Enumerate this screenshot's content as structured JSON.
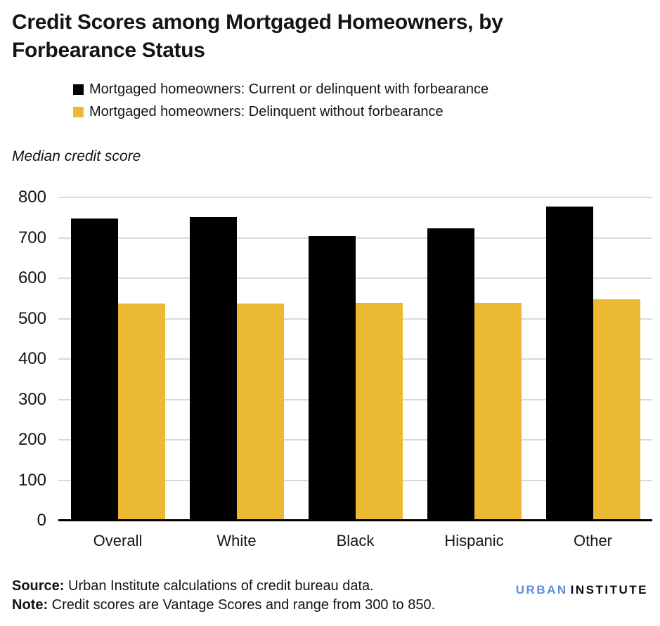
{
  "title": "Credit Scores among Mortgaged Homeowners, by Forbearance Status",
  "legend": [
    {
      "label": "Mortgaged homeowners: Current or delinquent with forbearance",
      "color": "#000000"
    },
    {
      "label": "Mortgaged homeowners: Delinquent without forbearance",
      "color": "#ecba32"
    }
  ],
  "axis_title": "Median credit score",
  "chart_data": {
    "type": "bar",
    "categories": [
      "Overall",
      "White",
      "Black",
      "Hispanic",
      "Other"
    ],
    "series": [
      {
        "name": "Mortgaged homeowners: Current or delinquent with forbearance",
        "color": "#000000",
        "values": [
          748,
          752,
          705,
          723,
          777
        ]
      },
      {
        "name": "Mortgaged homeowners: Delinquent without forbearance",
        "color": "#ecba32",
        "values": [
          537,
          537,
          540,
          540,
          548
        ]
      }
    ],
    "title": "Credit Scores among Mortgaged Homeowners, by Forbearance Status",
    "xlabel": "",
    "ylabel": "Median credit score",
    "ylim": [
      0,
      800
    ],
    "ytick_interval": 100,
    "yticks": [
      0,
      100,
      200,
      300,
      400,
      500,
      600,
      700,
      800
    ],
    "grid": true,
    "gridline_color": "#d9d9d9",
    "legend_position": "top"
  },
  "footer": {
    "source_label": "Source:",
    "source_text": " Urban Institute calculations of credit bureau data.",
    "note_label": "Note:",
    "note_text": " Credit scores are Vantage Scores and range from 300 to 850."
  },
  "logo": {
    "part1": "URBAN",
    "part2": "INSTITUTE",
    "color1": "#5b8ed8",
    "color2": "#0a0a0e"
  }
}
